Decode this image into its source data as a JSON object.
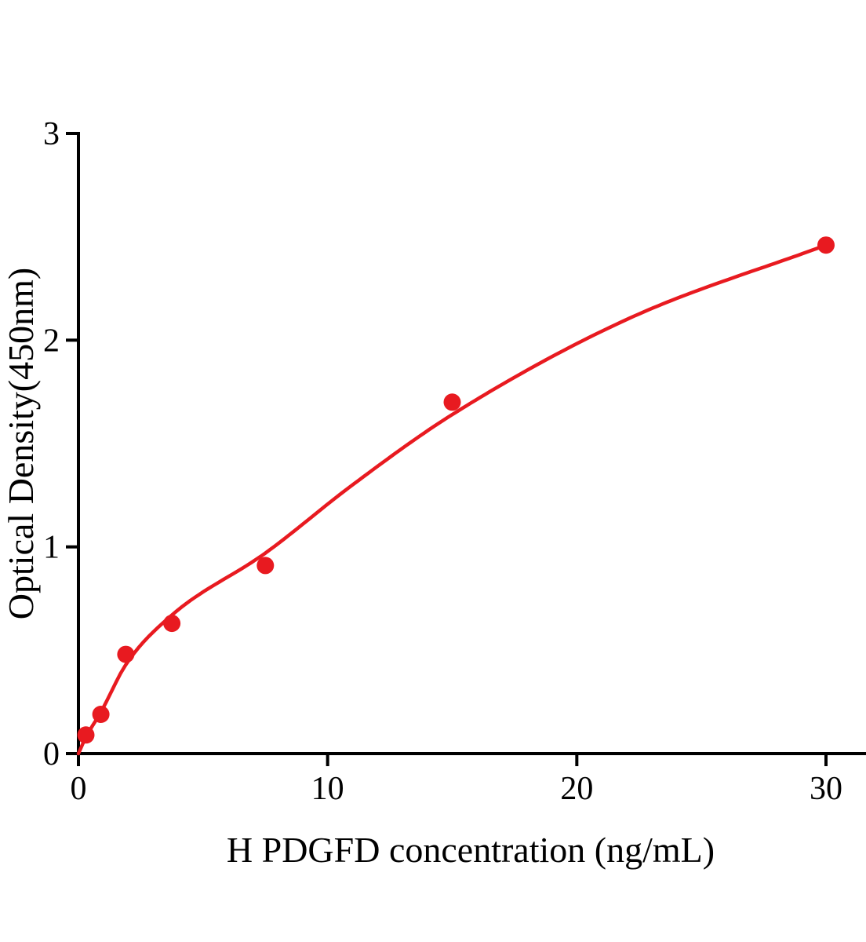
{
  "chart_data": {
    "type": "scatter",
    "title": "",
    "xlabel": "H PDGFD concentration (ng/mL)",
    "ylabel": "Optical Density(450nm)",
    "xlim": [
      0,
      31.6
    ],
    "ylim": [
      0,
      3
    ],
    "x_ticks": [
      0,
      10,
      20,
      30
    ],
    "y_ticks": [
      0,
      1,
      2,
      3
    ],
    "grid": false,
    "legend": "none",
    "points": [
      {
        "x": 0.3,
        "y": 0.09
      },
      {
        "x": 0.9,
        "y": 0.19
      },
      {
        "x": 1.9,
        "y": 0.48
      },
      {
        "x": 3.75,
        "y": 0.63
      },
      {
        "x": 7.5,
        "y": 0.91
      },
      {
        "x": 15,
        "y": 1.7
      },
      {
        "x": 30,
        "y": 2.46
      }
    ],
    "fit_curve": [
      {
        "x": 0,
        "y": 0
      },
      {
        "x": 0.3,
        "y": 0.08
      },
      {
        "x": 0.9,
        "y": 0.2
      },
      {
        "x": 1.9,
        "y": 0.43
      },
      {
        "x": 3.75,
        "y": 0.67
      },
      {
        "x": 7.5,
        "y": 0.97
      },
      {
        "x": 11,
        "y": 1.3
      },
      {
        "x": 15,
        "y": 1.64
      },
      {
        "x": 22,
        "y": 2.1
      },
      {
        "x": 30,
        "y": 2.46
      }
    ],
    "point_color": "#e81a20",
    "curve_color": "#e81a20",
    "axis_color": "#000000"
  }
}
